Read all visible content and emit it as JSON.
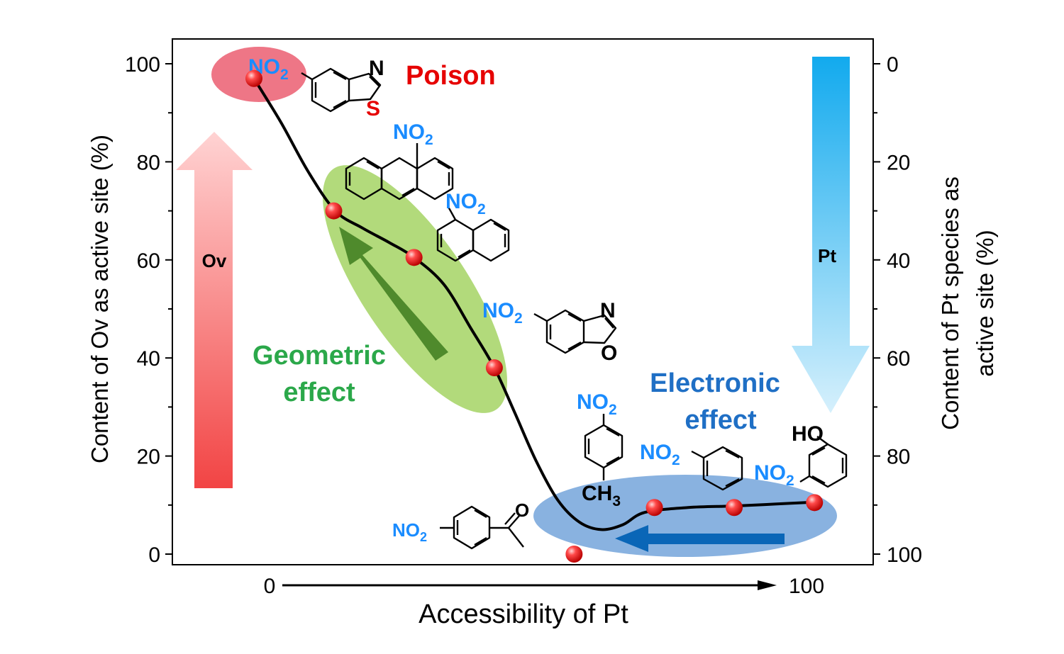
{
  "chart_data": {
    "type": "scatter",
    "title": "",
    "xlabel": "Accessibility of Pt",
    "x_axis_start_label": "0",
    "x_axis_end_label": "100",
    "ylabel_left": "Content of Ov as active site (%)",
    "ylabel_right_line1": "Content of Pt species as",
    "ylabel_right_line2": "active site (%)",
    "ylim_left": [
      0,
      100
    ],
    "ylim_right": [
      100,
      0
    ],
    "left_ticks": [
      "0",
      "20",
      "40",
      "60",
      "80",
      "100"
    ],
    "right_ticks": [
      "0",
      "20",
      "40",
      "60",
      "80",
      "100"
    ],
    "points": [
      {
        "x": 0,
        "y": 97
      },
      {
        "x": 14.7,
        "y": 70
      },
      {
        "x": 29.5,
        "y": 60.5
      },
      {
        "x": 44.3,
        "y": 38
      },
      {
        "x": 59,
        "y": 0
      },
      {
        "x": 73.8,
        "y": 9.5
      },
      {
        "x": 88.5,
        "y": 9.5
      },
      {
        "x": 103.3,
        "y": 10.5
      }
    ],
    "fit_curve": [
      [
        0,
        97
      ],
      [
        5,
        88
      ],
      [
        10,
        78
      ],
      [
        15,
        70
      ],
      [
        20,
        66.5
      ],
      [
        25,
        63.5
      ],
      [
        29.5,
        60.5
      ],
      [
        35,
        55
      ],
      [
        40,
        46
      ],
      [
        44.3,
        38
      ],
      [
        48,
        29
      ],
      [
        52,
        19
      ],
      [
        56,
        11
      ],
      [
        60,
        6.5
      ],
      [
        64,
        5
      ],
      [
        68,
        6
      ],
      [
        72,
        8.5
      ],
      [
        80,
        9.5
      ],
      [
        88.5,
        9.8
      ],
      [
        96,
        10.2
      ],
      [
        103.3,
        10.6
      ]
    ],
    "colors": {
      "poison": "#e60000",
      "geometric": "#2ba84a",
      "electronic": "#1f6fc5",
      "nitro": "#1a8cff",
      "ov_arrow": "#f24b4b",
      "pt_arrow": "#19aef0"
    }
  },
  "annotations": {
    "poison": "Poison",
    "geometric_line1": "Geometric",
    "geometric_line2": "effect",
    "electronic_line1": "Electronic",
    "electronic_line2": "effect",
    "ov_label": "Ov",
    "pt_label": "Pt"
  },
  "molecule_labels": {
    "nitro": "NO",
    "nitro_sub": "2",
    "benzothiazole_n": "N",
    "benzothiazole_s": "S",
    "benzoxazole_n": "N",
    "benzoxazole_o": "O",
    "methyl": "CH",
    "methyl_sub": "3",
    "hydroxyl": "HO",
    "ketone_o": "O"
  }
}
